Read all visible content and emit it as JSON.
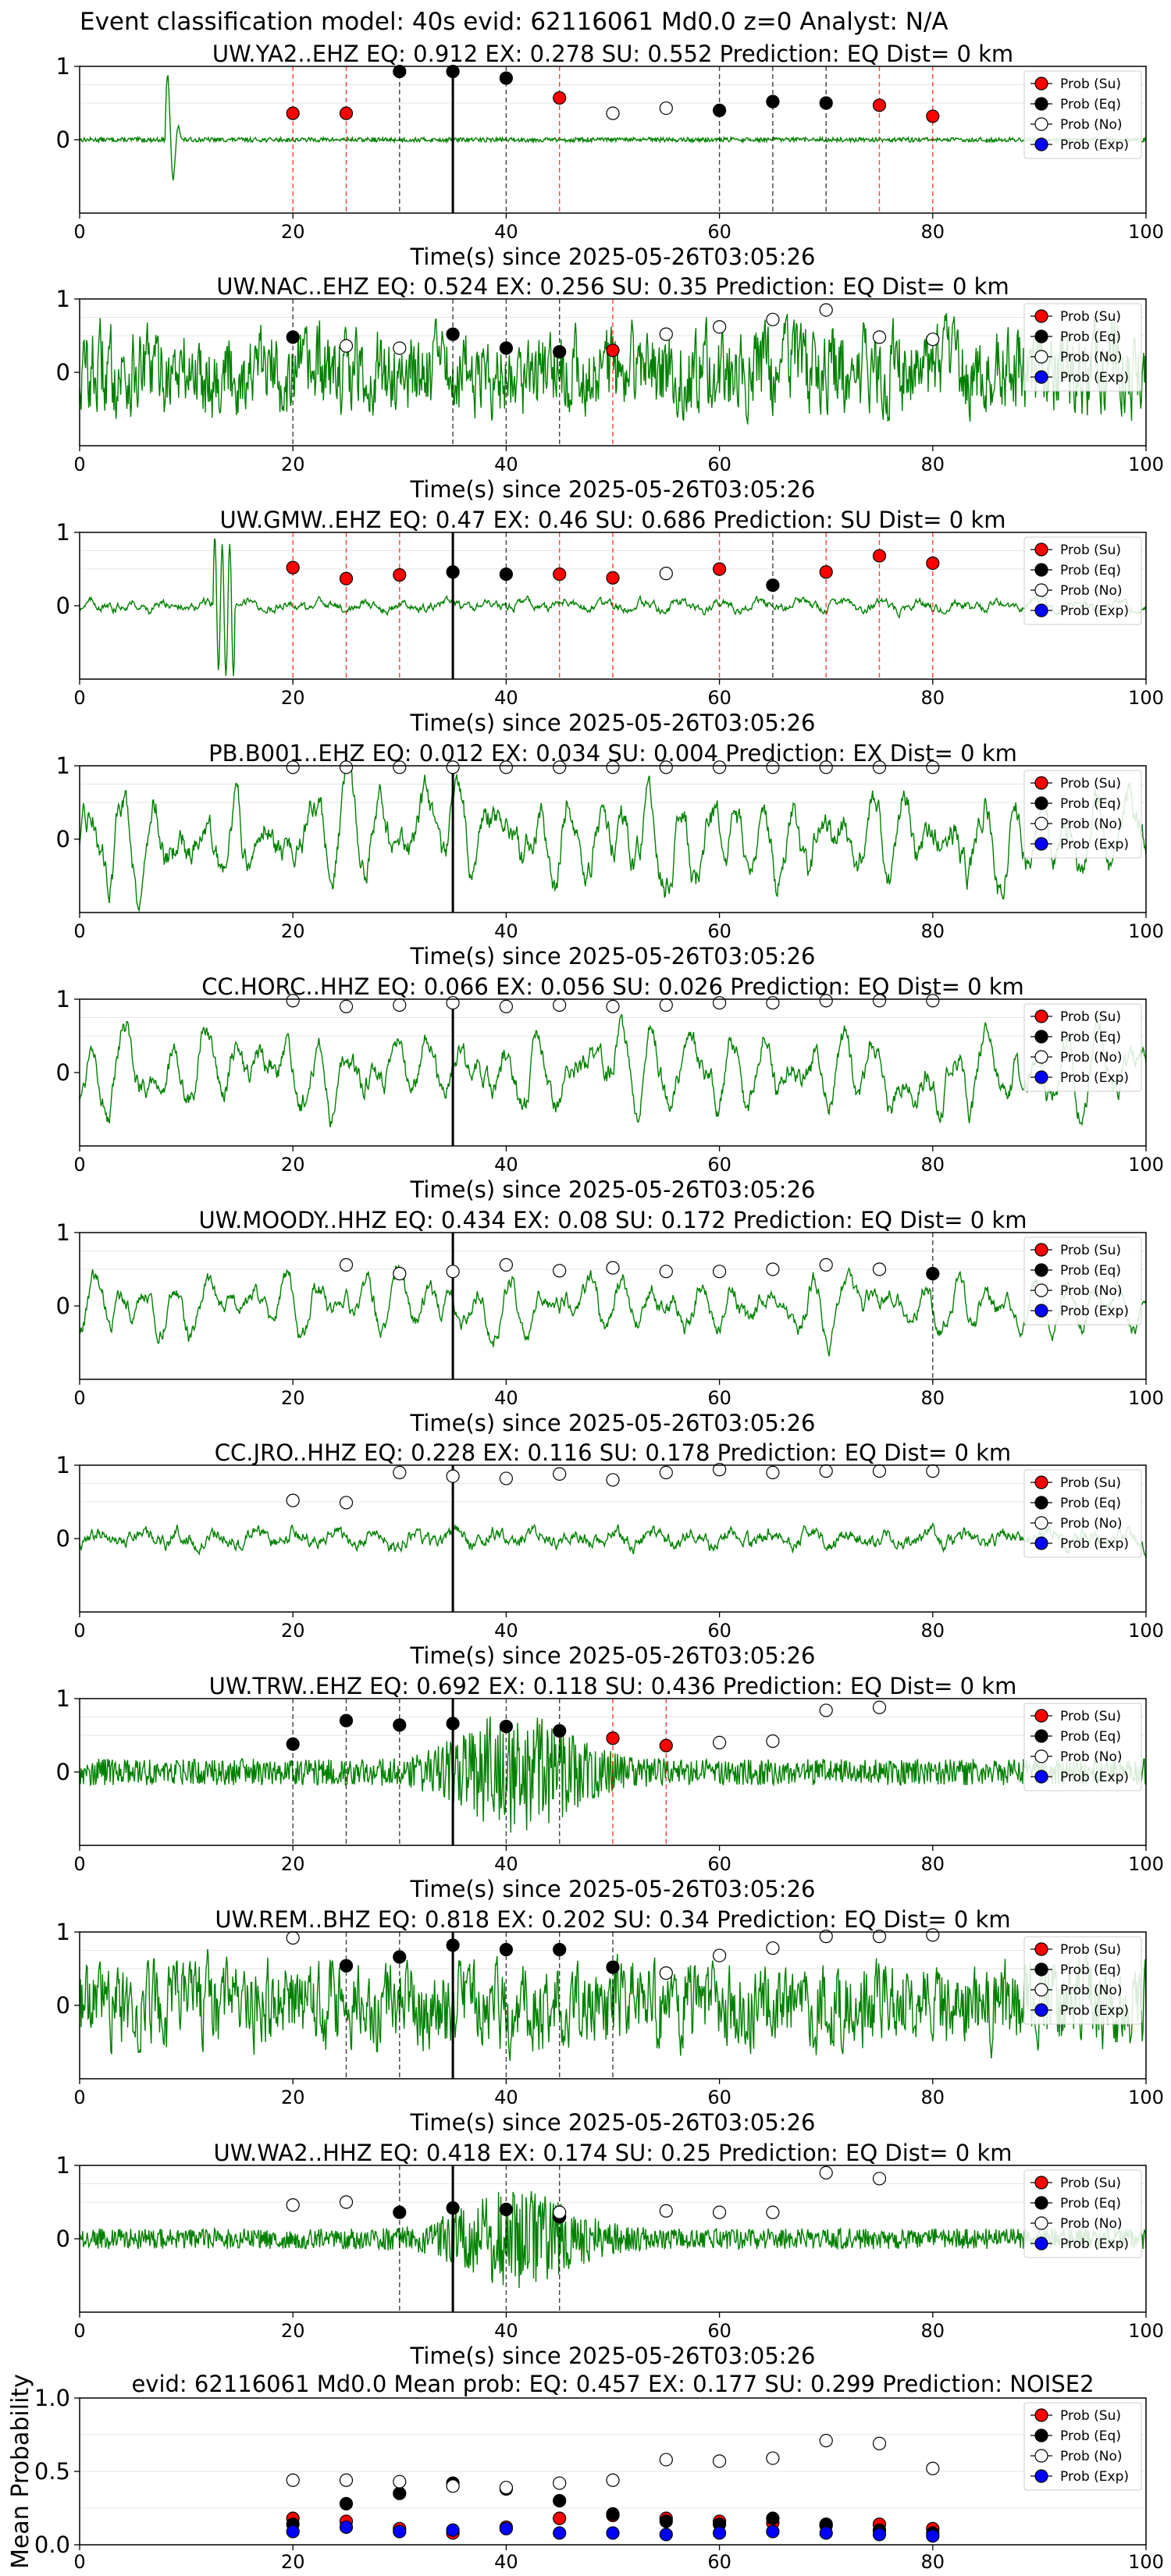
{
  "figure": {
    "suptitle": "Event classification model: 40s evid: 62116061 Md0.0 z=0 Analyst: N/A"
  },
  "chart_data": [
    {
      "type": "line",
      "station": "UW.YA2..EHZ",
      "title": "UW.YA2..EHZ   EQ: 0.912  EX: 0.278  SU: 0.552   Prediction: EQ    Dist= 0 km",
      "xlabel": "Time(s) since 2025-05-26T03:05:26",
      "xlim": [
        0,
        100
      ],
      "ylim": [
        -1,
        1
      ],
      "xticks": [
        0,
        20,
        40,
        60,
        80,
        100
      ],
      "yticks": [
        1,
        0
      ],
      "legend": [
        "Prob (Su)",
        "Prob (Eq)",
        "Prob (No)",
        "Prob (Exp)"
      ],
      "legend_position": "upper right",
      "waveform_style": "impulse",
      "waveform_amplitude": 0.03,
      "pick_time": 35,
      "prob_points": [
        {
          "t": 20,
          "p": 0.36,
          "c": "Su"
        },
        {
          "t": 25,
          "p": 0.36,
          "c": "Su"
        },
        {
          "t": 30,
          "p": 0.93,
          "c": "Eq"
        },
        {
          "t": 35,
          "p": 0.93,
          "c": "Eq"
        },
        {
          "t": 40,
          "p": 0.84,
          "c": "Eq"
        },
        {
          "t": 45,
          "p": 0.57,
          "c": "Su"
        },
        {
          "t": 50,
          "p": 0.36,
          "c": "No"
        },
        {
          "t": 55,
          "p": 0.43,
          "c": "No"
        },
        {
          "t": 60,
          "p": 0.4,
          "c": "Eq"
        },
        {
          "t": 65,
          "p": 0.52,
          "c": "Eq"
        },
        {
          "t": 70,
          "p": 0.5,
          "c": "Eq"
        },
        {
          "t": 75,
          "p": 0.47,
          "c": "Su"
        },
        {
          "t": 80,
          "p": 0.32,
          "c": "Su"
        }
      ]
    },
    {
      "type": "line",
      "station": "UW.NAC..EHZ",
      "title": "UW.NAC..EHZ   EQ: 0.524  EX: 0.256  SU: 0.35   Prediction: EQ    Dist= 0 km",
      "xlabel": "Time(s) since 2025-05-26T03:05:26",
      "xlim": [
        0,
        100
      ],
      "ylim": [
        -1,
        1
      ],
      "xticks": [
        0,
        20,
        40,
        60,
        80,
        100
      ],
      "yticks": [
        1,
        0
      ],
      "legend": [
        "Prob (Su)",
        "Prob (Eq)",
        "Prob (No)",
        "Prob (Exp)"
      ],
      "legend_position": "upper right",
      "waveform_style": "noise",
      "waveform_amplitude": 0.55,
      "pick_time": null,
      "prob_points": [
        {
          "t": 20,
          "p": 0.48,
          "c": "Eq"
        },
        {
          "t": 25,
          "p": 0.36,
          "c": "No"
        },
        {
          "t": 30,
          "p": 0.33,
          "c": "No"
        },
        {
          "t": 35,
          "p": 0.52,
          "c": "Eq"
        },
        {
          "t": 40,
          "p": 0.33,
          "c": "Eq"
        },
        {
          "t": 45,
          "p": 0.28,
          "c": "Eq"
        },
        {
          "t": 50,
          "p": 0.3,
          "c": "Su"
        },
        {
          "t": 55,
          "p": 0.52,
          "c": "No"
        },
        {
          "t": 60,
          "p": 0.62,
          "c": "No"
        },
        {
          "t": 65,
          "p": 0.72,
          "c": "No"
        },
        {
          "t": 70,
          "p": 0.85,
          "c": "No"
        },
        {
          "t": 75,
          "p": 0.48,
          "c": "No"
        },
        {
          "t": 80,
          "p": 0.45,
          "c": "No"
        }
      ]
    },
    {
      "type": "line",
      "station": "UW.GMW..EHZ",
      "title": "UW.GMW..EHZ   EQ: 0.47  EX: 0.46  SU: 0.686   Prediction: SU    Dist= 0 km",
      "xlabel": "Time(s) since 2025-05-26T03:05:26",
      "xlim": [
        0,
        100
      ],
      "ylim": [
        -1,
        1
      ],
      "xticks": [
        0,
        20,
        40,
        60,
        80,
        100
      ],
      "yticks": [
        1,
        0
      ],
      "legend": [
        "Prob (Su)",
        "Prob (Eq)",
        "Prob (No)",
        "Prob (Exp)"
      ],
      "legend_position": "upper right",
      "waveform_style": "quiet",
      "waveform_amplitude": 0.12,
      "pick_time": 35,
      "prob_points": [
        {
          "t": 20,
          "p": 0.52,
          "c": "Su"
        },
        {
          "t": 25,
          "p": 0.37,
          "c": "Su"
        },
        {
          "t": 30,
          "p": 0.42,
          "c": "Su"
        },
        {
          "t": 35,
          "p": 0.46,
          "c": "Eq"
        },
        {
          "t": 40,
          "p": 0.43,
          "c": "Eq"
        },
        {
          "t": 45,
          "p": 0.43,
          "c": "Su"
        },
        {
          "t": 50,
          "p": 0.38,
          "c": "Su"
        },
        {
          "t": 55,
          "p": 0.44,
          "c": "No"
        },
        {
          "t": 60,
          "p": 0.5,
          "c": "Su"
        },
        {
          "t": 65,
          "p": 0.28,
          "c": "Eq"
        },
        {
          "t": 70,
          "p": 0.46,
          "c": "Su"
        },
        {
          "t": 75,
          "p": 0.68,
          "c": "Su"
        },
        {
          "t": 80,
          "p": 0.58,
          "c": "Su"
        }
      ]
    },
    {
      "type": "line",
      "station": "PB.B001..EHZ",
      "title": "PB.B001..EHZ   EQ: 0.012  EX: 0.034  SU: 0.004   Prediction: EX    Dist= 0 km",
      "xlabel": "Time(s) since 2025-05-26T03:05:26",
      "xlim": [
        0,
        100
      ],
      "ylim": [
        -1,
        1
      ],
      "xticks": [
        0,
        20,
        40,
        60,
        80,
        100
      ],
      "yticks": [
        1,
        0
      ],
      "legend": [
        "Prob (Su)",
        "Prob (Eq)",
        "Prob (No)",
        "Prob (Exp)"
      ],
      "legend_position": "upper right",
      "waveform_style": "oscillating",
      "waveform_amplitude": 0.75,
      "pick_time": 35,
      "prob_points": [
        {
          "t": 20,
          "p": 0.98,
          "c": "No"
        },
        {
          "t": 25,
          "p": 0.98,
          "c": "No"
        },
        {
          "t": 30,
          "p": 0.98,
          "c": "No"
        },
        {
          "t": 35,
          "p": 0.98,
          "c": "No"
        },
        {
          "t": 40,
          "p": 0.98,
          "c": "No"
        },
        {
          "t": 45,
          "p": 0.98,
          "c": "No"
        },
        {
          "t": 50,
          "p": 0.98,
          "c": "No"
        },
        {
          "t": 55,
          "p": 0.98,
          "c": "No"
        },
        {
          "t": 60,
          "p": 0.98,
          "c": "No"
        },
        {
          "t": 65,
          "p": 0.98,
          "c": "No"
        },
        {
          "t": 70,
          "p": 0.98,
          "c": "No"
        },
        {
          "t": 75,
          "p": 0.98,
          "c": "No"
        },
        {
          "t": 80,
          "p": 0.98,
          "c": "No"
        }
      ]
    },
    {
      "type": "line",
      "station": "CC.HORC..HHZ",
      "title": "CC.HORC..HHZ   EQ: 0.066  EX: 0.056  SU: 0.026   Prediction: EQ    Dist= 0 km",
      "xlabel": "Time(s) since 2025-05-26T03:05:26",
      "xlim": [
        0,
        100
      ],
      "ylim": [
        -1,
        1
      ],
      "xticks": [
        0,
        20,
        40,
        60,
        80,
        100
      ],
      "yticks": [
        1,
        0
      ],
      "legend": [
        "Prob (Su)",
        "Prob (Eq)",
        "Prob (No)",
        "Prob (Exp)"
      ],
      "legend_position": "upper right",
      "waveform_style": "oscillating",
      "waveform_amplitude": 0.62,
      "pick_time": 35,
      "prob_points": [
        {
          "t": 20,
          "p": 0.98,
          "c": "No"
        },
        {
          "t": 25,
          "p": 0.9,
          "c": "No"
        },
        {
          "t": 30,
          "p": 0.92,
          "c": "No"
        },
        {
          "t": 35,
          "p": 0.95,
          "c": "No"
        },
        {
          "t": 40,
          "p": 0.9,
          "c": "No"
        },
        {
          "t": 45,
          "p": 0.92,
          "c": "No"
        },
        {
          "t": 50,
          "p": 0.9,
          "c": "No"
        },
        {
          "t": 55,
          "p": 0.92,
          "c": "No"
        },
        {
          "t": 60,
          "p": 0.95,
          "c": "No"
        },
        {
          "t": 65,
          "p": 0.95,
          "c": "No"
        },
        {
          "t": 70,
          "p": 0.98,
          "c": "No"
        },
        {
          "t": 75,
          "p": 0.98,
          "c": "No"
        },
        {
          "t": 80,
          "p": 0.98,
          "c": "No"
        }
      ]
    },
    {
      "type": "line",
      "station": "UW.MOODY..HHZ",
      "title": "UW.MOODY..HHZ   EQ: 0.434  EX: 0.08  SU: 0.172   Prediction: EQ    Dist= 0 km",
      "xlabel": "Time(s) since 2025-05-26T03:05:26",
      "xlim": [
        0,
        100
      ],
      "ylim": [
        -1,
        1
      ],
      "xticks": [
        0,
        20,
        40,
        60,
        80,
        100
      ],
      "yticks": [
        1,
        0
      ],
      "legend": [
        "Prob (Su)",
        "Prob (Eq)",
        "Prob (No)",
        "Prob (Exp)"
      ],
      "legend_position": "upper right",
      "waveform_style": "oscillating",
      "waveform_amplitude": 0.45,
      "pick_time": 35,
      "prob_points": [
        {
          "t": 25,
          "p": 0.56,
          "c": "No"
        },
        {
          "t": 30,
          "p": 0.44,
          "c": "No"
        },
        {
          "t": 35,
          "p": 0.47,
          "c": "No"
        },
        {
          "t": 40,
          "p": 0.56,
          "c": "No"
        },
        {
          "t": 45,
          "p": 0.48,
          "c": "No"
        },
        {
          "t": 50,
          "p": 0.52,
          "c": "No"
        },
        {
          "t": 55,
          "p": 0.47,
          "c": "No"
        },
        {
          "t": 60,
          "p": 0.47,
          "c": "No"
        },
        {
          "t": 65,
          "p": 0.5,
          "c": "No"
        },
        {
          "t": 70,
          "p": 0.56,
          "c": "No"
        },
        {
          "t": 75,
          "p": 0.5,
          "c": "No"
        },
        {
          "t": 80,
          "p": 0.44,
          "c": "Eq"
        }
      ]
    },
    {
      "type": "line",
      "station": "CC.JRO..HHZ",
      "title": "CC.JRO..HHZ   EQ: 0.228  EX: 0.116  SU: 0.178   Prediction: EQ    Dist= 0 km",
      "xlabel": "Time(s) since 2025-05-26T03:05:26",
      "xlim": [
        0,
        100
      ],
      "ylim": [
        -1,
        1
      ],
      "xticks": [
        0,
        20,
        40,
        60,
        80,
        100
      ],
      "yticks": [
        1,
        0
      ],
      "legend": [
        "Prob (Su)",
        "Prob (Eq)",
        "Prob (No)",
        "Prob (Exp)"
      ],
      "legend_position": "upper right",
      "waveform_style": "quiet",
      "waveform_amplitude": 0.2,
      "pick_time": 35,
      "prob_points": [
        {
          "t": 20,
          "p": 0.52,
          "c": "No"
        },
        {
          "t": 25,
          "p": 0.49,
          "c": "No"
        },
        {
          "t": 30,
          "p": 0.9,
          "c": "No"
        },
        {
          "t": 35,
          "p": 0.85,
          "c": "No"
        },
        {
          "t": 40,
          "p": 0.82,
          "c": "No"
        },
        {
          "t": 45,
          "p": 0.88,
          "c": "No"
        },
        {
          "t": 50,
          "p": 0.8,
          "c": "No"
        },
        {
          "t": 55,
          "p": 0.9,
          "c": "No"
        },
        {
          "t": 60,
          "p": 0.94,
          "c": "No"
        },
        {
          "t": 65,
          "p": 0.9,
          "c": "No"
        },
        {
          "t": 70,
          "p": 0.92,
          "c": "No"
        },
        {
          "t": 75,
          "p": 0.92,
          "c": "No"
        },
        {
          "t": 80,
          "p": 0.92,
          "c": "No"
        }
      ]
    },
    {
      "type": "line",
      "station": "UW.TRW..EHZ",
      "title": "UW.TRW..EHZ   EQ: 0.692  EX: 0.118  SU: 0.436   Prediction: EQ    Dist= 0 km",
      "xlabel": "Time(s) since 2025-05-26T03:05:26",
      "xlim": [
        0,
        100
      ],
      "ylim": [
        -1,
        1
      ],
      "xticks": [
        0,
        20,
        40,
        60,
        80,
        100
      ],
      "yticks": [
        1,
        0
      ],
      "legend": [
        "Prob (Su)",
        "Prob (Eq)",
        "Prob (No)",
        "Prob (Exp)"
      ],
      "legend_position": "upper right",
      "waveform_style": "burst",
      "waveform_amplitude": 0.18,
      "pick_time": 35,
      "prob_points": [
        {
          "t": 20,
          "p": 0.38,
          "c": "Eq"
        },
        {
          "t": 25,
          "p": 0.7,
          "c": "Eq"
        },
        {
          "t": 30,
          "p": 0.64,
          "c": "Eq"
        },
        {
          "t": 35,
          "p": 0.66,
          "c": "Eq"
        },
        {
          "t": 40,
          "p": 0.62,
          "c": "Eq"
        },
        {
          "t": 45,
          "p": 0.56,
          "c": "Eq"
        },
        {
          "t": 50,
          "p": 0.46,
          "c": "Su"
        },
        {
          "t": 55,
          "p": 0.36,
          "c": "Su"
        },
        {
          "t": 60,
          "p": 0.4,
          "c": "No"
        },
        {
          "t": 65,
          "p": 0.42,
          "c": "No"
        },
        {
          "t": 70,
          "p": 0.84,
          "c": "No"
        },
        {
          "t": 75,
          "p": 0.88,
          "c": "No"
        }
      ]
    },
    {
      "type": "line",
      "station": "UW.REM..BHZ",
      "title": "UW.REM..BHZ   EQ: 0.818  EX: 0.202  SU: 0.34   Prediction: EQ    Dist= 0 km",
      "xlabel": "Time(s) since 2025-05-26T03:05:26",
      "xlim": [
        0,
        100
      ],
      "ylim": [
        -1,
        1
      ],
      "xticks": [
        0,
        20,
        40,
        60,
        80,
        100
      ],
      "yticks": [
        1,
        0
      ],
      "legend": [
        "Prob (Su)",
        "Prob (Eq)",
        "Prob (No)",
        "Prob (Exp)"
      ],
      "legend_position": "upper right",
      "waveform_style": "noise",
      "waveform_amplitude": 0.55,
      "pick_time": 35,
      "prob_points": [
        {
          "t": 20,
          "p": 0.92,
          "c": "No"
        },
        {
          "t": 25,
          "p": 0.54,
          "c": "Eq"
        },
        {
          "t": 30,
          "p": 0.66,
          "c": "Eq"
        },
        {
          "t": 35,
          "p": 0.82,
          "c": "Eq"
        },
        {
          "t": 40,
          "p": 0.76,
          "c": "Eq"
        },
        {
          "t": 45,
          "p": 0.76,
          "c": "Eq"
        },
        {
          "t": 50,
          "p": 0.52,
          "c": "Eq"
        },
        {
          "t": 55,
          "p": 0.44,
          "c": "No"
        },
        {
          "t": 60,
          "p": 0.68,
          "c": "No"
        },
        {
          "t": 65,
          "p": 0.78,
          "c": "No"
        },
        {
          "t": 70,
          "p": 0.94,
          "c": "No"
        },
        {
          "t": 75,
          "p": 0.94,
          "c": "No"
        },
        {
          "t": 80,
          "p": 0.96,
          "c": "No"
        }
      ]
    },
    {
      "type": "line",
      "station": "UW.WA2..HHZ",
      "title": "UW.WA2..HHZ   EQ: 0.418  EX: 0.174  SU: 0.25   Prediction: EQ    Dist= 0 km",
      "xlabel": "Time(s) since 2025-05-26T03:05:26",
      "xlim": [
        0,
        100
      ],
      "ylim": [
        -1,
        1
      ],
      "xticks": [
        0,
        20,
        40,
        60,
        80,
        100
      ],
      "yticks": [
        1,
        0
      ],
      "legend": [
        "Prob (Su)",
        "Prob (Eq)",
        "Prob (No)",
        "Prob (Exp)"
      ],
      "legend_position": "upper right",
      "waveform_style": "burst",
      "waveform_amplitude": 0.14,
      "pick_time": 35,
      "prob_points": [
        {
          "t": 20,
          "p": 0.46,
          "c": "No"
        },
        {
          "t": 25,
          "p": 0.5,
          "c": "No"
        },
        {
          "t": 30,
          "p": 0.36,
          "c": "Eq"
        },
        {
          "t": 35,
          "p": 0.42,
          "c": "Eq"
        },
        {
          "t": 40,
          "p": 0.4,
          "c": "Eq"
        },
        {
          "t": 45,
          "p": 0.3,
          "c": "Eq"
        },
        {
          "t": 45,
          "p": 0.36,
          "c": "No"
        },
        {
          "t": 55,
          "p": 0.38,
          "c": "No"
        },
        {
          "t": 60,
          "p": 0.36,
          "c": "No"
        },
        {
          "t": 65,
          "p": 0.36,
          "c": "No"
        },
        {
          "t": 70,
          "p": 0.9,
          "c": "No"
        },
        {
          "t": 75,
          "p": 0.82,
          "c": "No"
        }
      ]
    },
    {
      "type": "scatter",
      "title": "evid: 62116061  Md0.0   Mean prob:   EQ: 0.457  EX: 0.177  SU: 0.299   Prediction: NOISE2",
      "ylabel": "Mean Probability",
      "xlim": [
        0,
        100
      ],
      "ylim": [
        0,
        1
      ],
      "xticks": [
        0,
        20,
        40,
        60,
        80,
        100
      ],
      "yticks": [
        "0.0",
        "0.5",
        "1.0"
      ],
      "legend": [
        "Prob (Su)",
        "Prob (Eq)",
        "Prob (No)",
        "Prob (Exp)"
      ],
      "legend_position": "upper right",
      "x": [
        20,
        25,
        30,
        35,
        40,
        45,
        50,
        55,
        60,
        65,
        70,
        75,
        80
      ],
      "series": [
        {
          "name": "Prob (Su)",
          "values": [
            0.18,
            0.16,
            0.11,
            0.08,
            0.12,
            0.18,
            0.2,
            0.18,
            0.16,
            0.15,
            0.13,
            0.14,
            0.11
          ]
        },
        {
          "name": "Prob (Eq)",
          "values": [
            0.14,
            0.28,
            0.35,
            0.42,
            0.38,
            0.3,
            0.21,
            0.16,
            0.14,
            0.18,
            0.14,
            0.1,
            0.08
          ]
        },
        {
          "name": "Prob (No)",
          "values": [
            0.44,
            0.44,
            0.43,
            0.4,
            0.39,
            0.42,
            0.44,
            0.58,
            0.57,
            0.59,
            0.71,
            0.69,
            0.52
          ]
        },
        {
          "name": "Prob (Exp)",
          "values": [
            0.09,
            0.12,
            0.09,
            0.1,
            0.11,
            0.08,
            0.08,
            0.07,
            0.08,
            0.09,
            0.08,
            0.07,
            0.06
          ]
        }
      ]
    }
  ],
  "colors": {
    "waveform": "#008000",
    "Su": "#ff0000",
    "Eq": "#000000",
    "No": "#ffffff",
    "Exp": "#0000ff",
    "red_dashed": "#ff0000",
    "black_dashed": "#000000",
    "grid": "#e6e6e6"
  }
}
